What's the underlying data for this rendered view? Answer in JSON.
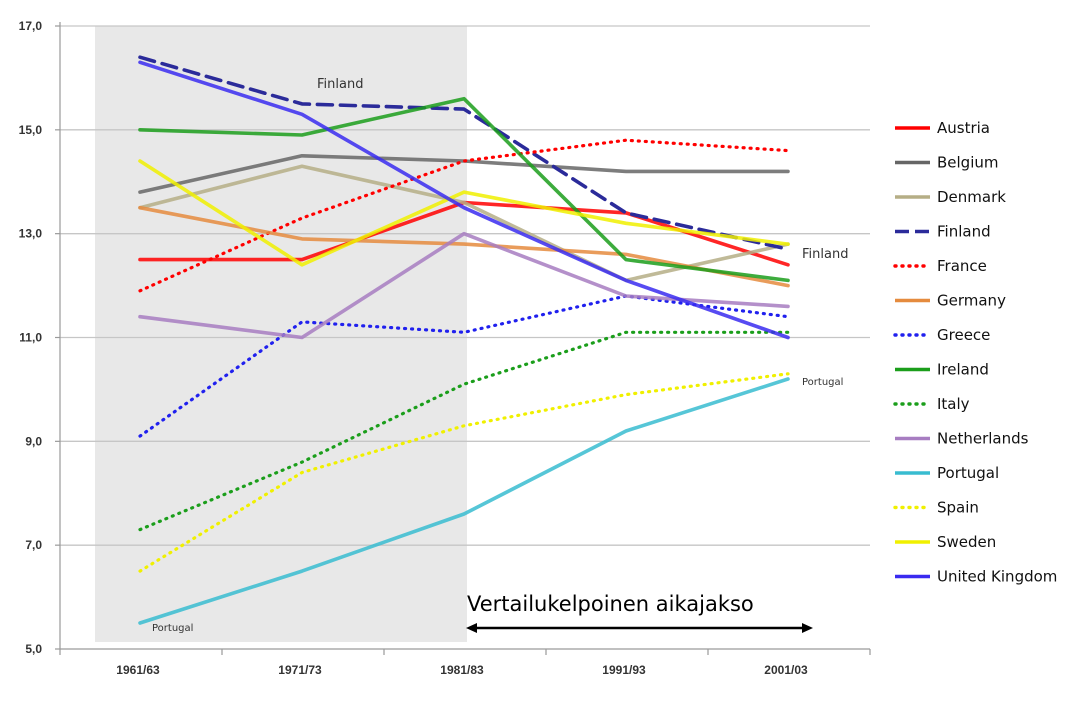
{
  "chart_data": {
    "type": "line",
    "categories": [
      "1961/63",
      "1971/73",
      "1981/83",
      "1991/93",
      "2001/03"
    ],
    "ylim": [
      5,
      17
    ],
    "yticks": [
      "5,0",
      "7,0",
      "9,0",
      "11,0",
      "13,0",
      "15,0",
      "17,0"
    ],
    "ytick_values": [
      5,
      7,
      9,
      11,
      13,
      15,
      17
    ],
    "grid": "horizontal",
    "legend_position": "right",
    "series": [
      {
        "name": "Austria",
        "color": "#ff0000",
        "style": "solid",
        "values": [
          12.5,
          12.5,
          13.6,
          13.4,
          12.4
        ]
      },
      {
        "name": "Belgium",
        "color": "#666666",
        "style": "solid",
        "values": [
          13.8,
          14.5,
          14.4,
          14.2,
          14.2
        ]
      },
      {
        "name": "Denmark",
        "color": "#b5ae86",
        "style": "solid",
        "values": [
          13.5,
          14.3,
          13.6,
          12.1,
          12.8
        ]
      },
      {
        "name": "Finland",
        "color": "#2b2b9a",
        "style": "dashed",
        "values": [
          16.4,
          15.5,
          15.4,
          13.4,
          12.7
        ]
      },
      {
        "name": "France",
        "color": "#ff0000",
        "style": "dotted",
        "values": [
          11.9,
          13.3,
          14.4,
          14.8,
          14.6
        ]
      },
      {
        "name": "Germany",
        "color": "#e58b3e",
        "style": "solid",
        "values": [
          13.5,
          12.9,
          12.8,
          12.6,
          12.0
        ]
      },
      {
        "name": "Greece",
        "color": "#2020ee",
        "style": "dotted",
        "values": [
          9.1,
          11.3,
          11.1,
          11.8,
          11.4
        ]
      },
      {
        "name": "Ireland",
        "color": "#1b9e1b",
        "style": "solid",
        "values": [
          15.0,
          14.9,
          15.6,
          12.5,
          12.1
        ]
      },
      {
        "name": "Italy",
        "color": "#1b9e1b",
        "style": "dotted",
        "values": [
          7.3,
          8.6,
          10.1,
          11.1,
          11.1
        ]
      },
      {
        "name": "Netherlands",
        "color": "#a77dc1",
        "style": "solid",
        "values": [
          11.4,
          11.0,
          13.0,
          11.8,
          11.6
        ]
      },
      {
        "name": "Portugal",
        "color": "#38bcd0",
        "style": "solid",
        "values": [
          5.5,
          6.5,
          7.6,
          9.2,
          10.2
        ]
      },
      {
        "name": "Spain",
        "color": "#f0f000",
        "style": "dotted",
        "values": [
          6.5,
          8.4,
          9.3,
          9.9,
          10.3
        ]
      },
      {
        "name": "Sweden",
        "color": "#f0f000",
        "style": "solid",
        "values": [
          14.4,
          12.4,
          13.8,
          13.2,
          12.8
        ]
      },
      {
        "name": "United Kingdom",
        "color": "#3a2bf0",
        "style": "solid",
        "values": [
          16.3,
          15.3,
          13.5,
          12.1,
          11.0
        ]
      }
    ],
    "shaded_region": {
      "from": "1961/63",
      "to": "1981/83",
      "color": "#e8e8e8"
    },
    "annotations": [
      {
        "text": "Finland",
        "at": "1971/73",
        "near_series": "Finland",
        "position": "above"
      },
      {
        "text": "Finland",
        "at": "2001/03",
        "near_series": "Finland",
        "position": "right"
      },
      {
        "text": "Portugal",
        "at": "1961/63",
        "near_series": "Portugal",
        "position": "below"
      },
      {
        "text": "Portugal",
        "at": "2001/03",
        "near_series": "Portugal",
        "position": "right"
      }
    ],
    "period_label": "Vertailukelpoinen aikajakso",
    "period_arrow": {
      "from": "1981/83",
      "to": "2001/03"
    }
  }
}
